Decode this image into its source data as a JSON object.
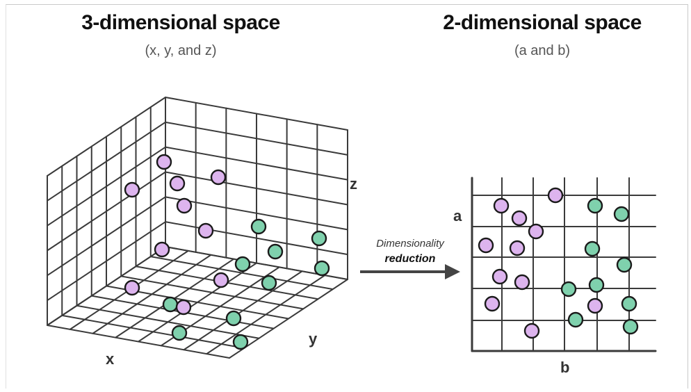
{
  "left_panel": {
    "title": "3-dimensional space",
    "subtitle": "(x, y, and z)",
    "axis_x": "x",
    "axis_y": "y",
    "axis_z": "z"
  },
  "right_panel": {
    "title": "2-dimensional space",
    "subtitle": "(a and b)",
    "axis_a": "a",
    "axis_b": "b"
  },
  "arrow": {
    "line1": "Dimensionality",
    "line2": "reduction"
  },
  "colors": {
    "purple": "#ddb4ee",
    "green": "#7fd1ad",
    "stroke": "#1a1a1a",
    "grid": "#3a3a3a"
  }
}
